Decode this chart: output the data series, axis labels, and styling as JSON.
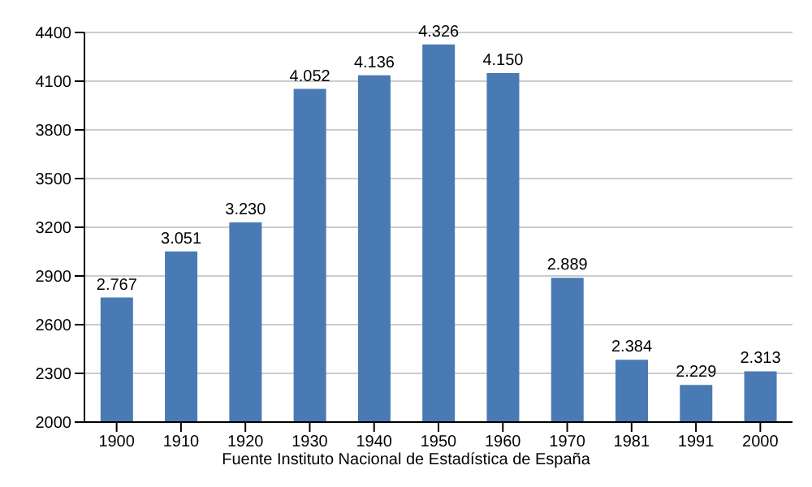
{
  "chart_data": {
    "type": "bar",
    "categories": [
      "1900",
      "1910",
      "1920",
      "1930",
      "1940",
      "1950",
      "1960",
      "1970",
      "1981",
      "1991",
      "2000"
    ],
    "values": [
      2767,
      3051,
      3230,
      4052,
      4136,
      4326,
      4150,
      2889,
      2384,
      2229,
      2313
    ],
    "value_labels": [
      "2.767",
      "3.051",
      "3.230",
      "4.052",
      "4.136",
      "4.326",
      "4.150",
      "2.889",
      "2.384",
      "2.229",
      "2.313"
    ],
    "color": "#4a7ab4",
    "ylim": [
      2000,
      4400
    ],
    "yticks": [
      2000,
      2300,
      2600,
      2900,
      3200,
      3500,
      3800,
      4100,
      4400
    ],
    "grid": "y",
    "annotations": [
      "Fuente Instituto Nacional de Estadística de España"
    ]
  }
}
